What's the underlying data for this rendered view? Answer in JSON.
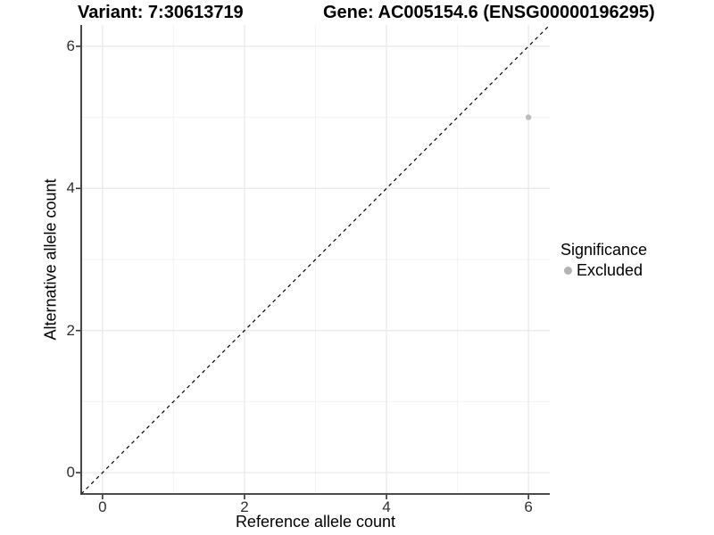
{
  "chart_data": {
    "type": "scatter",
    "titles": {
      "left": "Variant: 7:30613719",
      "right": "Gene: AC005154.6 (ENSG00000196295)"
    },
    "xlabel": "Reference allele count",
    "ylabel": "Alternative allele count",
    "xlim": [
      -0.3,
      6.3
    ],
    "ylim": [
      -0.3,
      6.3
    ],
    "x_ticks": [
      0,
      2,
      4,
      6
    ],
    "y_ticks": [
      0,
      2,
      4,
      6
    ],
    "x_minor_ticks": [
      1,
      3,
      5
    ],
    "y_minor_ticks": [
      1,
      3,
      5
    ],
    "grid": true,
    "series": [
      {
        "name": "Excluded",
        "color": "#bcbcbc",
        "points": [
          {
            "x": 6,
            "y": 5
          }
        ]
      }
    ],
    "reference_line": {
      "slope": 1,
      "intercept": 0,
      "style": "dashed",
      "color": "#000000"
    },
    "legend": {
      "title": "Significance",
      "position": "right",
      "items": [
        {
          "label": "Excluded",
          "color": "#b3b3b3"
        }
      ]
    },
    "colors": {
      "background": "#ffffff",
      "grid_major": "#eaeaea",
      "grid_minor": "#f3f3f3",
      "axis_line": "#333333",
      "tick_mark": "#333333",
      "tick_text": "#303030"
    }
  }
}
